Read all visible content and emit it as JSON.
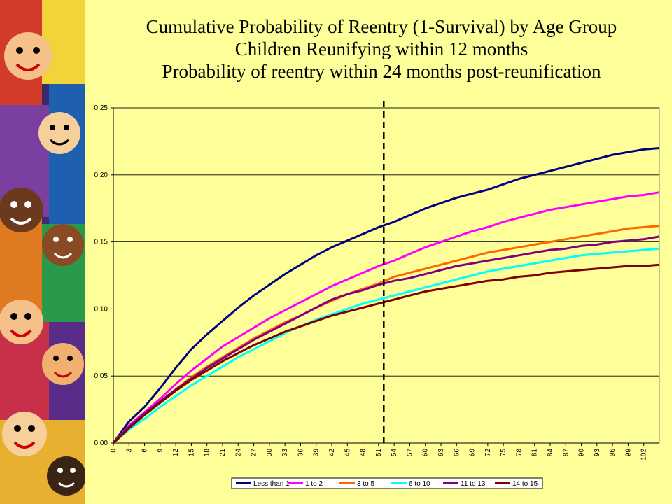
{
  "title_lines": [
    "Cumulative Probability of Reentry (1-Survival) by Age Group",
    "Children Reunifying within 12 months",
    "Probability of reentry within 24 months post-reunification"
  ],
  "colors": {
    "background": "#FFFF99",
    "plot_area": "#FFFF99",
    "gridline": "#000000",
    "marker_line": "#000000"
  },
  "chart_data": {
    "type": "line",
    "title": "Cumulative Probability of Reentry (1-Survival) by Age Group",
    "xlabel": "",
    "ylabel": "",
    "xlim": [
      0,
      105
    ],
    "ylim": [
      0,
      0.25
    ],
    "x_ticks": [
      0,
      3,
      6,
      9,
      12,
      15,
      18,
      21,
      24,
      27,
      30,
      33,
      36,
      39,
      42,
      45,
      48,
      51,
      54,
      57,
      60,
      63,
      66,
      69,
      72,
      75,
      78,
      81,
      84,
      87,
      90,
      93,
      96,
      99,
      102
    ],
    "y_ticks": [
      "0.00",
      "0.05",
      "0.10",
      "0.15",
      "0.20",
      "0.25"
    ],
    "grid": "horizontal",
    "legend_position": "bottom",
    "reference_line_x": 52,
    "x": [
      0,
      3,
      6,
      9,
      12,
      15,
      18,
      21,
      24,
      27,
      30,
      33,
      36,
      39,
      42,
      45,
      48,
      51,
      54,
      57,
      60,
      63,
      66,
      69,
      72,
      75,
      78,
      81,
      84,
      87,
      90,
      93,
      96,
      99,
      102,
      105
    ],
    "series": [
      {
        "name": "Less than 1",
        "color": "#000080",
        "values": [
          0,
          0.016,
          0.027,
          0.041,
          0.056,
          0.07,
          0.081,
          0.091,
          0.101,
          0.11,
          0.118,
          0.126,
          0.133,
          0.14,
          0.146,
          0.151,
          0.156,
          0.161,
          0.165,
          0.17,
          0.175,
          0.179,
          0.183,
          0.186,
          0.189,
          0.193,
          0.197,
          0.2,
          0.203,
          0.206,
          0.209,
          0.212,
          0.215,
          0.217,
          0.219,
          0.22
        ]
      },
      {
        "name": "1 to 2",
        "color": "#FF00FF",
        "values": [
          0,
          0.013,
          0.023,
          0.033,
          0.044,
          0.054,
          0.063,
          0.072,
          0.079,
          0.086,
          0.093,
          0.099,
          0.105,
          0.111,
          0.117,
          0.122,
          0.127,
          0.132,
          0.136,
          0.141,
          0.146,
          0.15,
          0.154,
          0.158,
          0.161,
          0.165,
          0.168,
          0.171,
          0.174,
          0.176,
          0.178,
          0.18,
          0.182,
          0.184,
          0.185,
          0.187
        ]
      },
      {
        "name": "3 to 5",
        "color": "#FF6600",
        "values": [
          0,
          0.012,
          0.021,
          0.031,
          0.04,
          0.049,
          0.057,
          0.064,
          0.071,
          0.078,
          0.084,
          0.09,
          0.095,
          0.101,
          0.106,
          0.111,
          0.115,
          0.119,
          0.124,
          0.127,
          0.13,
          0.133,
          0.136,
          0.139,
          0.142,
          0.144,
          0.146,
          0.148,
          0.15,
          0.152,
          0.154,
          0.156,
          0.158,
          0.16,
          0.161,
          0.162
        ]
      },
      {
        "name": "6 to 10",
        "color": "#00FFFF",
        "values": [
          0,
          0.01,
          0.018,
          0.027,
          0.035,
          0.043,
          0.05,
          0.057,
          0.064,
          0.07,
          0.076,
          0.082,
          0.087,
          0.092,
          0.096,
          0.1,
          0.104,
          0.107,
          0.11,
          0.113,
          0.116,
          0.119,
          0.122,
          0.125,
          0.128,
          0.13,
          0.132,
          0.134,
          0.136,
          0.138,
          0.14,
          0.141,
          0.142,
          0.143,
          0.144,
          0.145
        ]
      },
      {
        "name": "11 to 13",
        "color": "#800080",
        "values": [
          0,
          0.012,
          0.022,
          0.031,
          0.04,
          0.048,
          0.056,
          0.063,
          0.07,
          0.077,
          0.083,
          0.089,
          0.095,
          0.101,
          0.107,
          0.111,
          0.114,
          0.118,
          0.121,
          0.123,
          0.126,
          0.129,
          0.132,
          0.134,
          0.136,
          0.138,
          0.14,
          0.142,
          0.144,
          0.145,
          0.147,
          0.148,
          0.15,
          0.151,
          0.152,
          0.154
        ]
      },
      {
        "name": "14 to 15",
        "color": "#800000",
        "values": [
          0,
          0.011,
          0.021,
          0.03,
          0.039,
          0.047,
          0.054,
          0.061,
          0.067,
          0.073,
          0.078,
          0.083,
          0.087,
          0.091,
          0.095,
          0.098,
          0.101,
          0.104,
          0.107,
          0.11,
          0.113,
          0.115,
          0.117,
          0.119,
          0.121,
          0.122,
          0.124,
          0.125,
          0.127,
          0.128,
          0.129,
          0.13,
          0.131,
          0.132,
          0.132,
          0.133
        ]
      }
    ]
  }
}
